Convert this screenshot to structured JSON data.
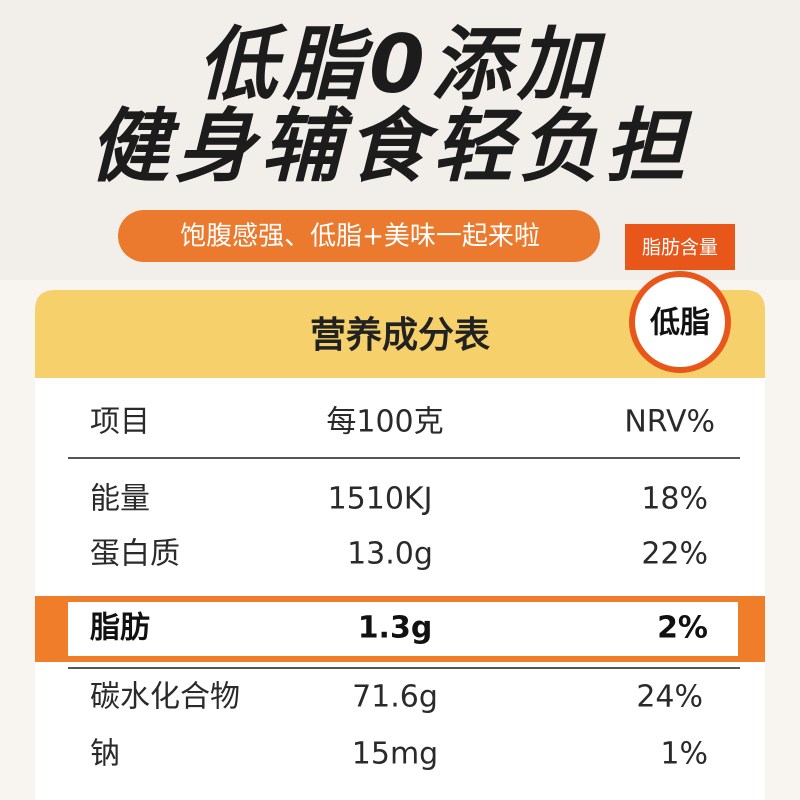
{
  "header": {
    "lines": [
      "低脂0添加",
      "健身辅食轻负担"
    ],
    "tagline": "饱腹感强、低脂+美味一起来啦"
  },
  "badge": {
    "top": "脂肪含量",
    "main": "低脂"
  },
  "table": {
    "title": "营养成分表",
    "columns": [
      "项目",
      "每100克",
      "NRV%"
    ],
    "rows": [
      [
        "能量",
        "1510KJ",
        "18%"
      ],
      [
        "蛋白质",
        "13.0g",
        "22%"
      ],
      [
        "脂肪",
        "1.3g",
        "2%"
      ],
      [
        "碳水化合物",
        "71.6g",
        "24%"
      ],
      [
        "钠",
        "15mg",
        "1%"
      ]
    ]
  }
}
